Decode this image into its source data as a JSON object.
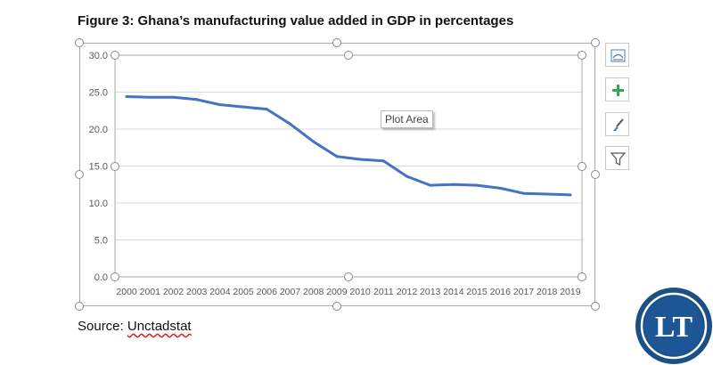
{
  "figure": {
    "title": "Figure 3: Ghana’s manufacturing value added in GDP in percentages",
    "source_label": "Source: ",
    "source_link": "Unctadstat"
  },
  "tooltip": {
    "text": "Plot Area"
  },
  "side_buttons": [
    {
      "icon": "chart-elements-icon",
      "action": "chart-elements"
    },
    {
      "icon": "plus-icon",
      "action": "add-element"
    },
    {
      "icon": "brush-icon",
      "action": "chart-styles"
    },
    {
      "icon": "filter-icon",
      "action": "chart-filters"
    }
  ],
  "logo": {
    "text": "LT",
    "colors": {
      "outer": "#1b4f86",
      "ring": "#ffffff",
      "inner": "#1c5694"
    }
  },
  "colors": {
    "line": "#4472c4",
    "grid": "#d9d9d9",
    "axis_text": "#595959"
  },
  "chart_data": {
    "type": "line",
    "title": "",
    "xlabel": "",
    "ylabel": "",
    "categories": [
      "2000",
      "2001",
      "2002",
      "2003",
      "2004",
      "2005",
      "2006",
      "2007",
      "2008",
      "2009",
      "2010",
      "2011",
      "2012",
      "2013",
      "2014",
      "2015",
      "2016",
      "2017",
      "2018",
      "2019"
    ],
    "series": [
      {
        "values": [
          24.4,
          24.3,
          24.3,
          24.0,
          23.3,
          23.0,
          22.7,
          20.7,
          18.3,
          16.3,
          15.9,
          15.7,
          13.6,
          12.4,
          12.5,
          12.4,
          12.0,
          11.3,
          11.2,
          11.1
        ]
      }
    ],
    "yticks": [
      "0.0",
      "5.0",
      "10.0",
      "15.0",
      "20.0",
      "25.0",
      "30.0"
    ],
    "ylim": [
      0,
      30
    ],
    "grid": true,
    "legend": "none"
  }
}
